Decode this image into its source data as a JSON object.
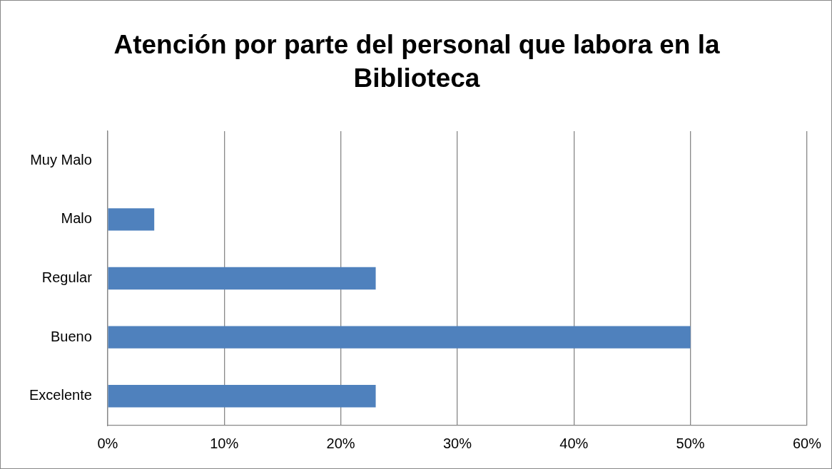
{
  "chart_data": {
    "type": "bar",
    "orientation": "horizontal",
    "title": "Atención por parte del personal que labora en la Biblioteca",
    "categories": [
      "Muy Malo",
      "Malo",
      "Regular",
      "Bueno",
      "Excelente"
    ],
    "values": [
      0,
      4,
      23,
      50,
      23
    ],
    "color": "#4f81bd",
    "xlim": [
      0,
      60
    ],
    "xticks": [
      {
        "value": 0,
        "label": "0%"
      },
      {
        "value": 10,
        "label": "10%"
      },
      {
        "value": 20,
        "label": "20%"
      },
      {
        "value": 30,
        "label": "30%"
      },
      {
        "value": 40,
        "label": "40%"
      },
      {
        "value": 50,
        "label": "50%"
      },
      {
        "value": 60,
        "label": "60%"
      }
    ],
    "grid": "x"
  }
}
